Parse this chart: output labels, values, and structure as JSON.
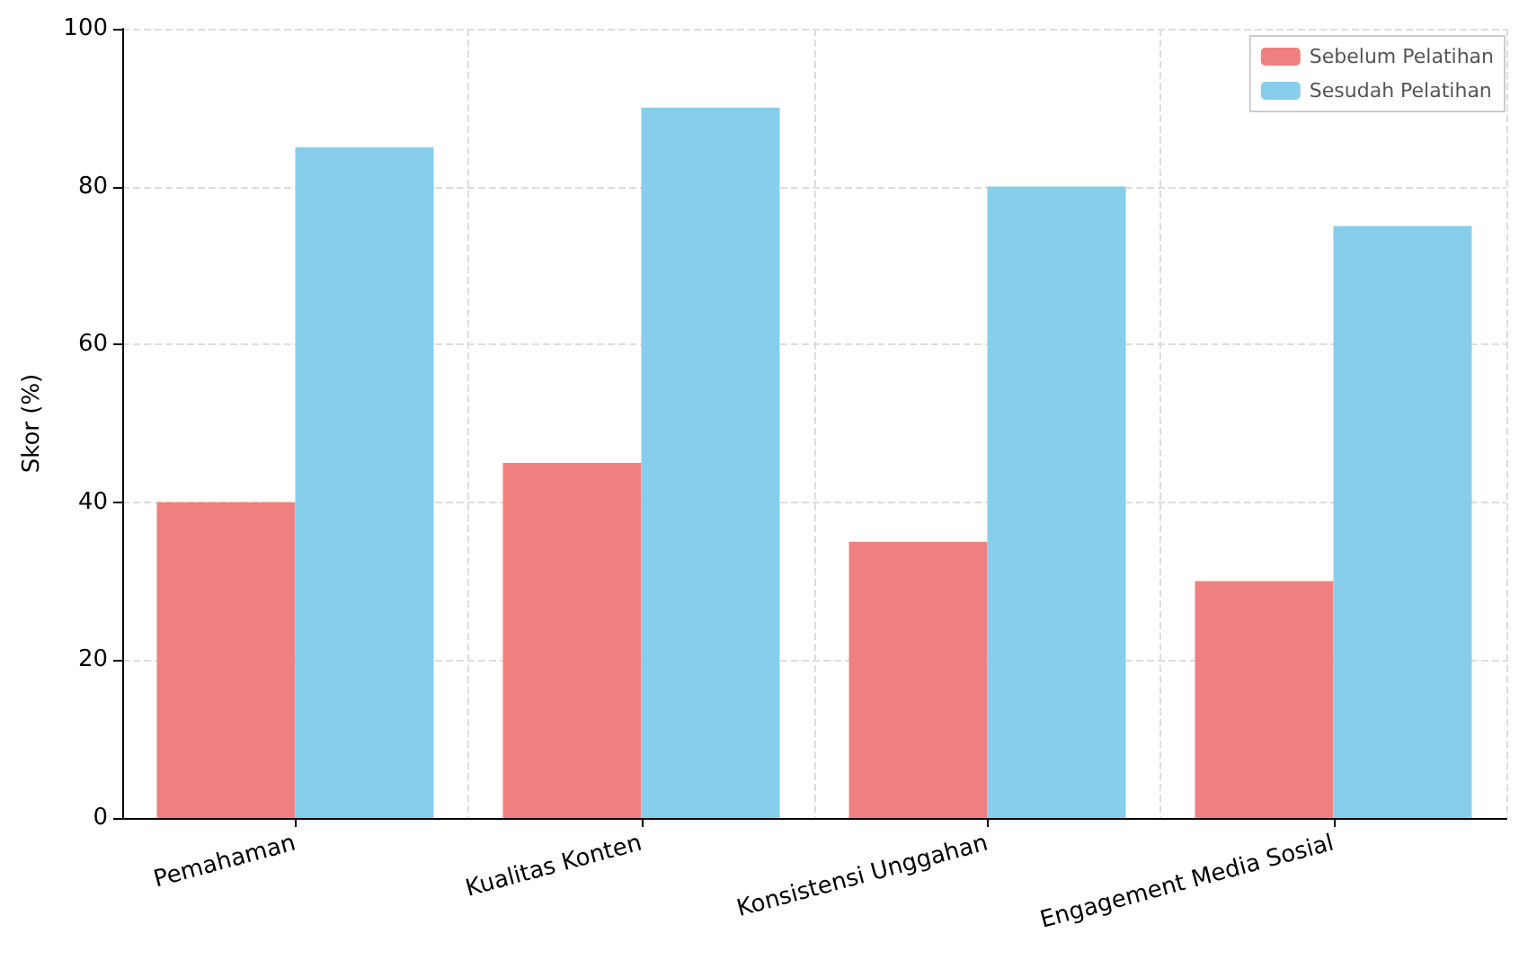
{
  "chart_data": {
    "type": "bar",
    "ylabel": "Skor (%)",
    "categories": [
      "Pemahaman",
      "Kualitas Konten",
      "Konsistensi Unggahan",
      "Engagement Media Sosial"
    ],
    "series": [
      {
        "name": "Sebelum Pelatihan",
        "color": "#f08080",
        "values": [
          40,
          45,
          35,
          30
        ]
      },
      {
        "name": "Sesudah Pelatihan",
        "color": "#87ceeb",
        "values": [
          85,
          90,
          80,
          75
        ]
      }
    ],
    "ylim": [
      0,
      100
    ],
    "yticks": [
      0,
      20,
      40,
      60,
      80,
      100
    ],
    "grid": true,
    "legend": "top right"
  }
}
